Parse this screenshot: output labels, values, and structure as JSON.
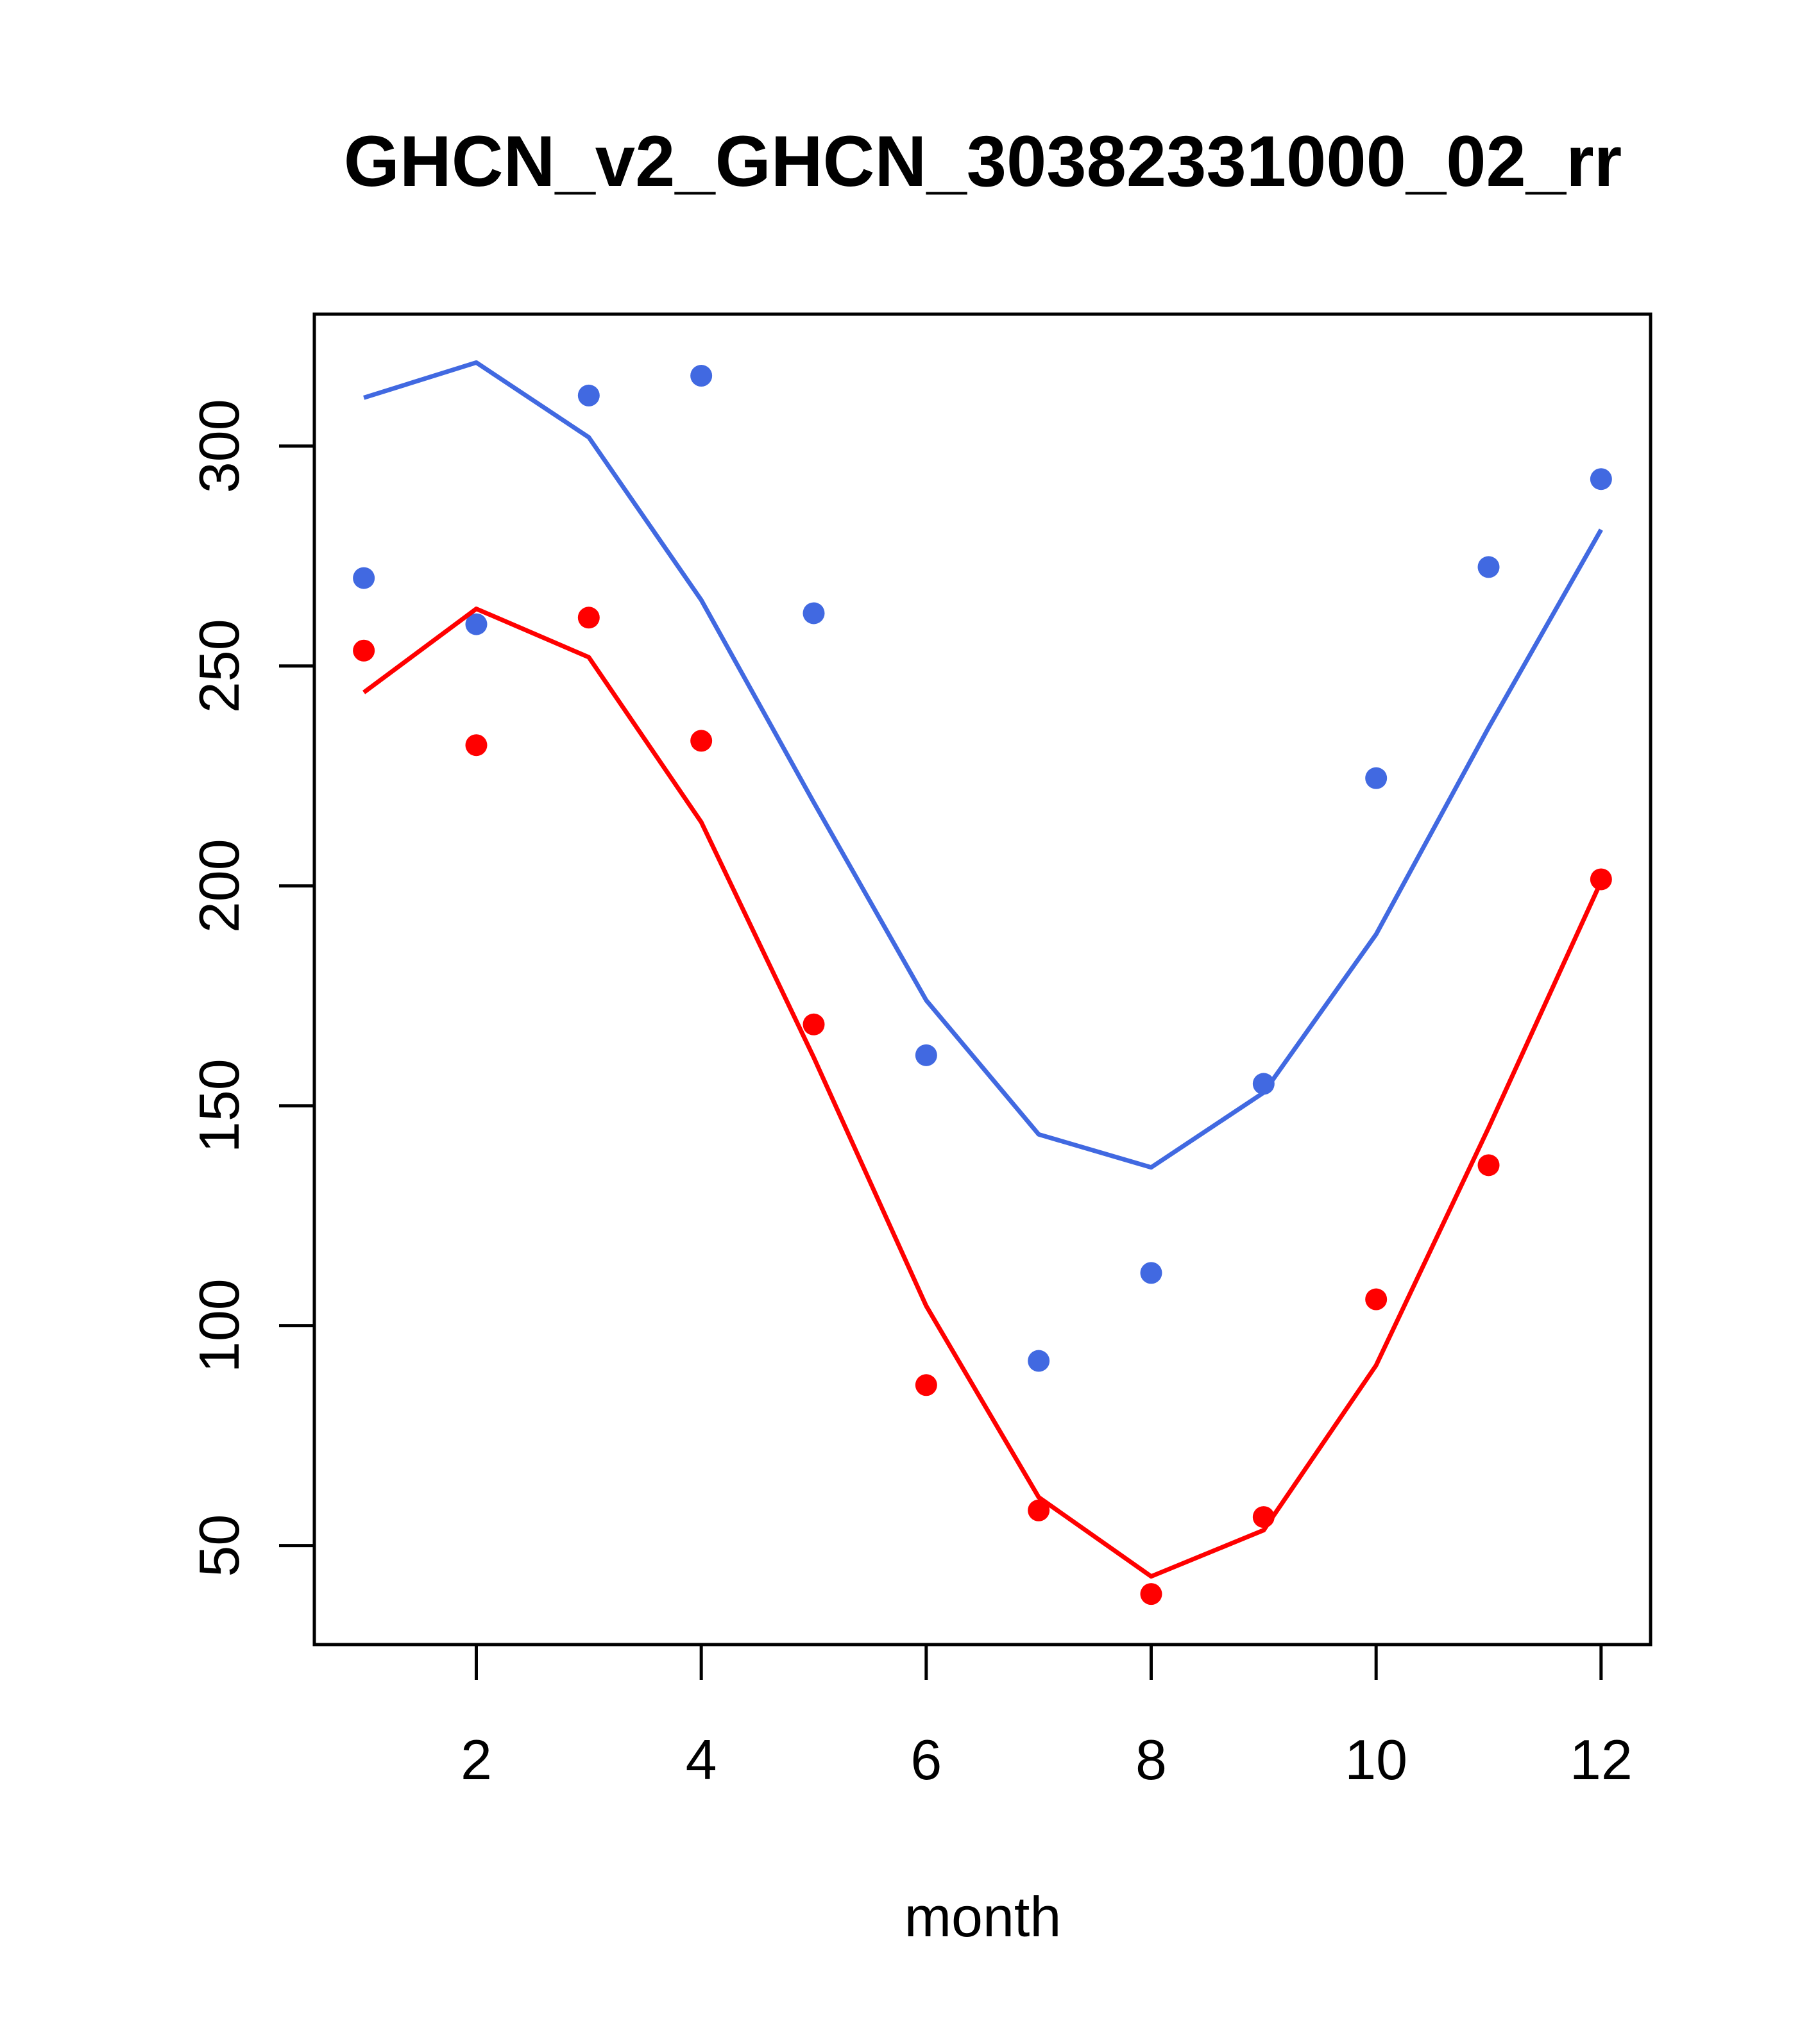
{
  "chart_data": {
    "type": "line",
    "title": "GHCN_v2_GHCN_30382331000_02_rr",
    "xlabel": "month",
    "ylabel": "",
    "xlim": [
      0.56,
      12.44
    ],
    "ylim": [
      27.5,
      330
    ],
    "x_ticks": [
      2,
      4,
      6,
      8,
      10,
      12
    ],
    "y_ticks": [
      50,
      100,
      150,
      200,
      250,
      300
    ],
    "grid": false,
    "legend": "none",
    "x": [
      1,
      2,
      3,
      4,
      5,
      6,
      7,
      8,
      9,
      10,
      11,
      12
    ],
    "series": [
      {
        "color": "#4169e1",
        "points": [
          270,
          259.5,
          311.5,
          316,
          262,
          161.5,
          92,
          112,
          155,
          224.5,
          272.5,
          292.5
        ],
        "line": [
          311,
          319,
          302,
          265,
          219,
          174,
          143.5,
          136,
          153,
          189,
          236,
          281
        ]
      },
      {
        "color": "#ff0000",
        "points": [
          253.5,
          232,
          261,
          233,
          168.5,
          86.5,
          58,
          39,
          56.5,
          106,
          136.5,
          201.5
        ],
        "line": [
          244,
          263,
          252,
          214.5,
          161,
          104.5,
          61,
          43,
          53.5,
          91,
          145,
          201
        ]
      }
    ]
  }
}
